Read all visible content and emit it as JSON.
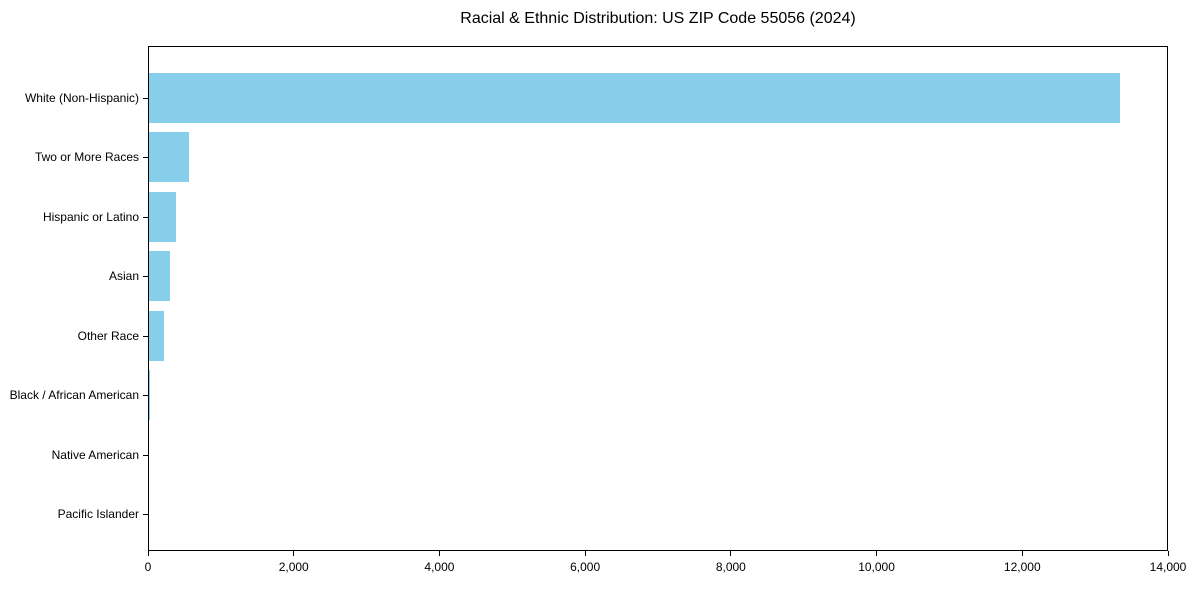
{
  "title": "Racial & Ethnic Distribution: US ZIP Code 55056 (2024)",
  "chart_data": {
    "type": "bar",
    "orientation": "horizontal",
    "title": "Racial & Ethnic Distribution: US ZIP Code 55056 (2024)",
    "xlabel": "",
    "ylabel": "",
    "categories": [
      "White (Non-Hispanic)",
      "Two or More Races",
      "Hispanic or Latino",
      "Asian",
      "Other Race",
      "Black / African American",
      "Native American",
      "Pacific Islander"
    ],
    "values": [
      13330,
      550,
      365,
      285,
      210,
      14,
      0,
      0
    ],
    "xlim": [
      0,
      14000
    ],
    "xticks": [
      0,
      2000,
      4000,
      6000,
      8000,
      10000,
      12000,
      14000
    ],
    "xtick_labels": [
      "0",
      "2,000",
      "4,000",
      "6,000",
      "8,000",
      "10,000",
      "12,000",
      "14,000"
    ],
    "grid": false,
    "legend": null,
    "bar_color": "#87CEEB",
    "spine_color": "#000000",
    "text_color": "#000000",
    "background_color": "#FFFFFF"
  }
}
